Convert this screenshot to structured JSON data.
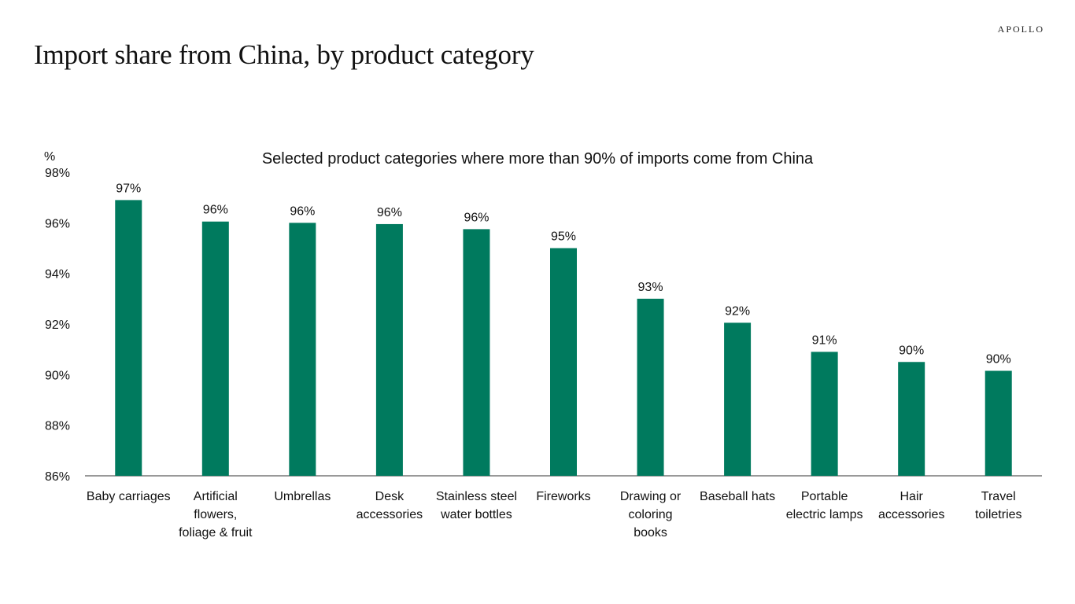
{
  "header": {
    "brand": "APOLLO",
    "title": "Import share from China, by product category"
  },
  "chart_data": {
    "type": "bar",
    "title": "Selected product categories where more than 90% of imports come from China",
    "ylabel": "%",
    "ylim": [
      86,
      98
    ],
    "yticks": [
      86,
      88,
      90,
      92,
      94,
      96,
      98
    ],
    "ytick_labels": [
      "86%",
      "88%",
      "90%",
      "92%",
      "94%",
      "96%",
      "98%"
    ],
    "bar_color": "#007a5e",
    "categories": [
      [
        "Baby carriages"
      ],
      [
        "Artificial",
        "flowers,",
        "foliage & fruit"
      ],
      [
        "Umbrellas"
      ],
      [
        "Desk",
        "accessories"
      ],
      [
        "Stainless steel",
        "water bottles"
      ],
      [
        "Fireworks"
      ],
      [
        "Drawing or",
        "coloring",
        "books"
      ],
      [
        "Baseball hats"
      ],
      [
        "Portable",
        "electric lamps"
      ],
      [
        "Hair",
        "accessories"
      ],
      [
        "Travel",
        "toiletries"
      ]
    ],
    "values": [
      96.9,
      96.05,
      96.0,
      95.95,
      95.75,
      95.0,
      93.0,
      92.05,
      90.9,
      90.5,
      90.15
    ],
    "data_labels": [
      "97%",
      "96%",
      "96%",
      "96%",
      "96%",
      "95%",
      "93%",
      "92%",
      "91%",
      "90%",
      "90%"
    ]
  }
}
